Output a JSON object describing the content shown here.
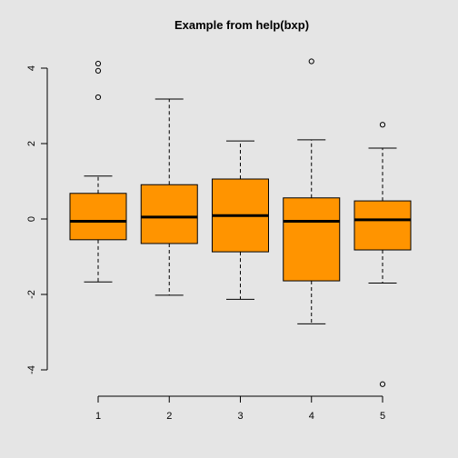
{
  "chart_data": {
    "type": "boxplot",
    "title": "Example from help(bxp)",
    "xlabel": "",
    "ylabel": "",
    "categories": [
      "1",
      "2",
      "3",
      "4",
      "5"
    ],
    "yticks": [
      "-4",
      "-2",
      "0",
      "2",
      "4"
    ],
    "ylim": [
      -4.4,
      4.2
    ],
    "grid": false,
    "colors": {
      "fill": "#ff9400",
      "background": "#e5e5e5",
      "stroke": "#000000"
    },
    "boxes": [
      {
        "name": "1",
        "whisker_low": -1.67,
        "q1": -0.55,
        "median": -0.06,
        "q3": 0.68,
        "whisker_high": 1.14,
        "outliers": [
          3.23,
          3.93,
          4.12
        ]
      },
      {
        "name": "2",
        "whisker_low": -2.02,
        "q1": -0.65,
        "median": 0.05,
        "q3": 0.91,
        "whisker_high": 3.18,
        "outliers": []
      },
      {
        "name": "3",
        "whisker_low": -2.13,
        "q1": -0.87,
        "median": 0.09,
        "q3": 1.06,
        "whisker_high": 2.07,
        "outliers": []
      },
      {
        "name": "4",
        "whisker_low": -2.78,
        "q1": -1.64,
        "median": -0.06,
        "q3": 0.56,
        "whisker_high": 2.1,
        "outliers": [
          4.18
        ]
      },
      {
        "name": "5",
        "whisker_low": -1.7,
        "q1": -0.82,
        "median": -0.02,
        "q3": 0.48,
        "whisker_high": 1.88,
        "outliers": [
          2.5,
          -4.38
        ]
      }
    ]
  }
}
